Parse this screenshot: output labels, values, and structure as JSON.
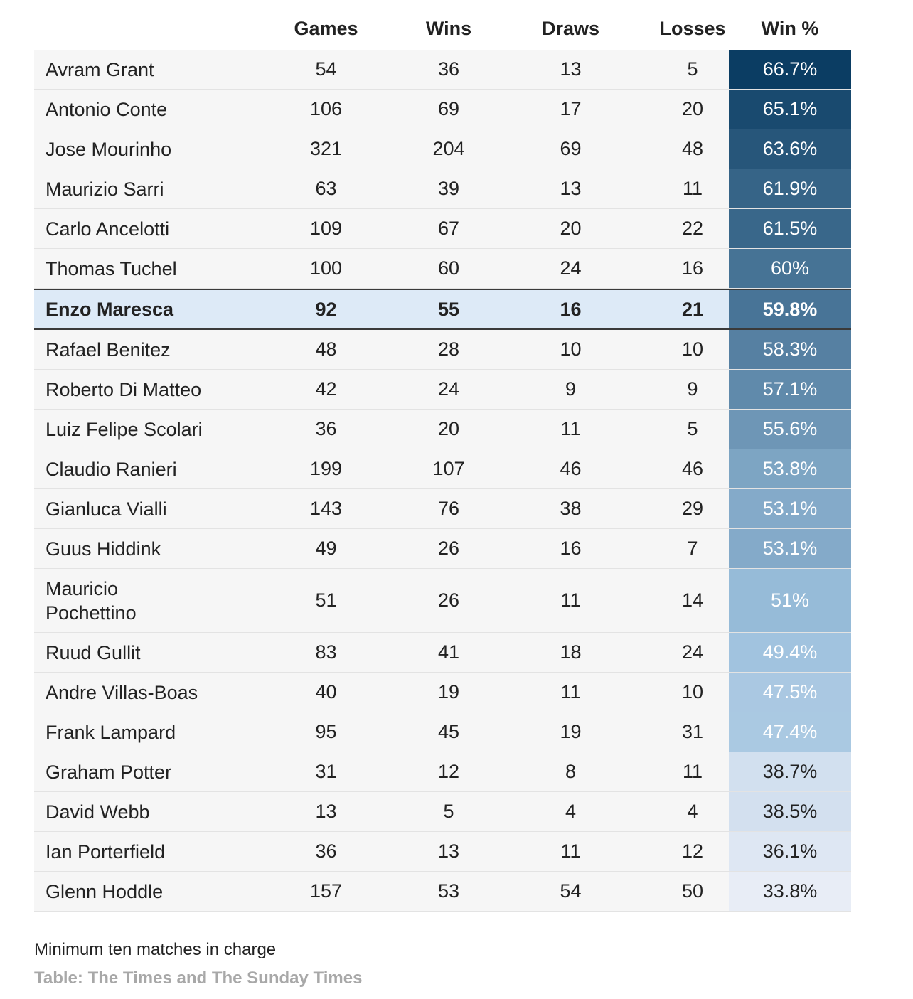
{
  "chart_data": {
    "type": "table",
    "columns": [
      "",
      "Games",
      "Wins",
      "Draws",
      "Losses",
      "Win %"
    ],
    "rows": [
      {
        "name": "Avram Grant",
        "games": "54",
        "wins": "36",
        "draws": "13",
        "losses": "5",
        "win_pct": "66.7%",
        "win_value": 66.7
      },
      {
        "name": "Antonio Conte",
        "games": "106",
        "wins": "69",
        "draws": "17",
        "losses": "20",
        "win_pct": "65.1%",
        "win_value": 65.1
      },
      {
        "name": "Jose Mourinho",
        "games": "321",
        "wins": "204",
        "draws": "69",
        "losses": "48",
        "win_pct": "63.6%",
        "win_value": 63.6
      },
      {
        "name": "Maurizio Sarri",
        "games": "63",
        "wins": "39",
        "draws": "13",
        "losses": "11",
        "win_pct": "61.9%",
        "win_value": 61.9
      },
      {
        "name": "Carlo Ancelotti",
        "games": "109",
        "wins": "67",
        "draws": "20",
        "losses": "22",
        "win_pct": "61.5%",
        "win_value": 61.5
      },
      {
        "name": "Thomas Tuchel",
        "games": "100",
        "wins": "60",
        "draws": "24",
        "losses": "16",
        "win_pct": "60%",
        "win_value": 60.0
      },
      {
        "name": "Enzo Maresca",
        "games": "92",
        "wins": "55",
        "draws": "16",
        "losses": "21",
        "win_pct": "59.8%",
        "win_value": 59.8,
        "highlight": true
      },
      {
        "name": "Rafael Benitez",
        "games": "48",
        "wins": "28",
        "draws": "10",
        "losses": "10",
        "win_pct": "58.3%",
        "win_value": 58.3
      },
      {
        "name": "Roberto Di Matteo",
        "games": "42",
        "wins": "24",
        "draws": "9",
        "losses": "9",
        "win_pct": "57.1%",
        "win_value": 57.1
      },
      {
        "name": "Luiz Felipe Scolari",
        "games": "36",
        "wins": "20",
        "draws": "11",
        "losses": "5",
        "win_pct": "55.6%",
        "win_value": 55.6
      },
      {
        "name": "Claudio Ranieri",
        "games": "199",
        "wins": "107",
        "draws": "46",
        "losses": "46",
        "win_pct": "53.8%",
        "win_value": 53.8
      },
      {
        "name": "Gianluca Vialli",
        "games": "143",
        "wins": "76",
        "draws": "38",
        "losses": "29",
        "win_pct": "53.1%",
        "win_value": 53.1
      },
      {
        "name": "Guus Hiddink",
        "games": "49",
        "wins": "26",
        "draws": "16",
        "losses": "7",
        "win_pct": "53.1%",
        "win_value": 53.1
      },
      {
        "name": "Mauricio\nPochettino",
        "games": "51",
        "wins": "26",
        "draws": "11",
        "losses": "14",
        "win_pct": "51%",
        "win_value": 51.0
      },
      {
        "name": "Ruud Gullit",
        "games": "83",
        "wins": "41",
        "draws": "18",
        "losses": "24",
        "win_pct": "49.4%",
        "win_value": 49.4
      },
      {
        "name": "Andre Villas-Boas",
        "games": "40",
        "wins": "19",
        "draws": "11",
        "losses": "10",
        "win_pct": "47.5%",
        "win_value": 47.5
      },
      {
        "name": "Frank Lampard",
        "games": "95",
        "wins": "45",
        "draws": "19",
        "losses": "31",
        "win_pct": "47.4%",
        "win_value": 47.4
      },
      {
        "name": "Graham Potter",
        "games": "31",
        "wins": "12",
        "draws": "8",
        "losses": "11",
        "win_pct": "38.7%",
        "win_value": 38.7
      },
      {
        "name": "David Webb",
        "games": "13",
        "wins": "5",
        "draws": "4",
        "losses": "4",
        "win_pct": "38.5%",
        "win_value": 38.5
      },
      {
        "name": "Ian Porterfield",
        "games": "36",
        "wins": "13",
        "draws": "11",
        "losses": "12",
        "win_pct": "36.1%",
        "win_value": 36.1
      },
      {
        "name": "Glenn Hoddle",
        "games": "157",
        "wins": "53",
        "draws": "54",
        "losses": "50",
        "win_pct": "33.8%",
        "win_value": 33.8
      }
    ],
    "color_scale": {
      "low": "#e8edf6",
      "high": "#0b3d63",
      "text_light": "#ffffff",
      "text_dark": "#222222"
    }
  },
  "footnote": "Minimum ten matches in charge",
  "source": "Table: The Times and The Sunday Times",
  "colors": {
    "row_background": "#f6f6f6",
    "highlight_background": "#ddeaf7",
    "source_text": "#a8a8a8"
  }
}
